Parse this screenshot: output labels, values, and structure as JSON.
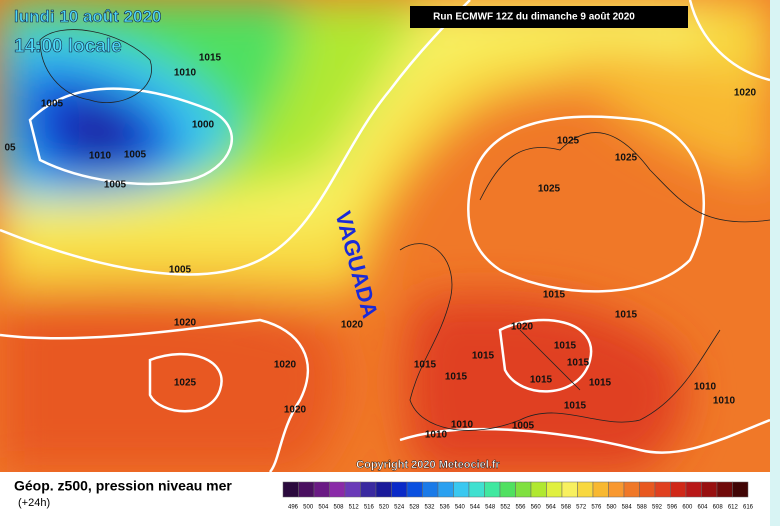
{
  "header": {
    "date": "lundi 10 août 2020",
    "time": "14:00 locale",
    "run": "Run ECMWF 12Z du dimanche 9 août 2020"
  },
  "annotation": "VAGUADA",
  "isobar_labels": [
    "1015",
    "1010",
    "1005",
    "1000",
    "05",
    "1010",
    "1005",
    "1005",
    "1005",
    "1020",
    "1020",
    "1025",
    "1020",
    "1020",
    "1020",
    "1025",
    "1025",
    "1025",
    "1015",
    "1015",
    "1020",
    "1015",
    "1015",
    "1015",
    "1015",
    "1015",
    "1015",
    "1015",
    "1015",
    "1010",
    "1010",
    "1010",
    "1010",
    "1005"
  ],
  "footer": {
    "title": "Géop. z500, pression niveau mer",
    "subtitle": "(+24h)",
    "copyright": "Copyright 2020 Meteociel.fr"
  },
  "legend": {
    "labels": [
      496,
      500,
      504,
      508,
      512,
      516,
      520,
      524,
      528,
      532,
      536,
      540,
      544,
      548,
      552,
      556,
      560,
      564,
      568,
      572,
      576,
      580,
      584,
      588,
      592,
      596,
      600,
      604,
      608,
      612,
      616
    ],
    "colors": [
      "#2b0a3d",
      "#4a1060",
      "#6a1a84",
      "#8a2aa8",
      "#6a3ab8",
      "#3a2aa0",
      "#1a1a9a",
      "#0a2ac8",
      "#0a50e0",
      "#1a7ae8",
      "#2aa0f0",
      "#3ac8f0",
      "#40e0d0",
      "#40e8a0",
      "#50e060",
      "#80e040",
      "#b0e830",
      "#e0f040",
      "#f8f060",
      "#f8d840",
      "#f8b830",
      "#f89830",
      "#f07828",
      "#e85820",
      "#e04020",
      "#d02818",
      "#b81818",
      "#981010",
      "#700a0a",
      "#400505"
    ]
  }
}
